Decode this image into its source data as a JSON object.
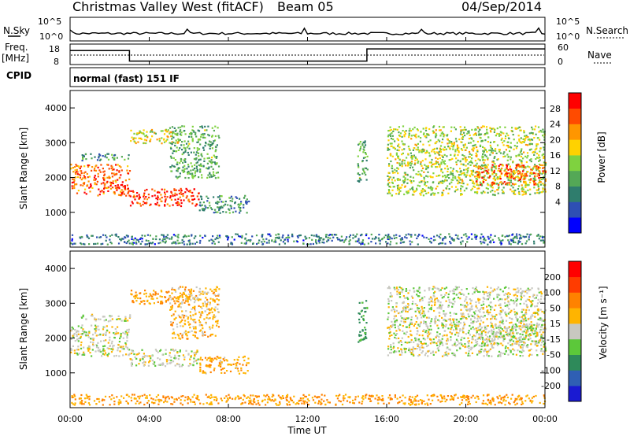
{
  "header": {
    "title": "Christmas Valley West (fitACF)",
    "beam": "Beam 05",
    "date": "04/Sep/2014"
  },
  "panels": {
    "nsky": {
      "left_label": "N.Sky",
      "right_label": "N.Search",
      "ticks_left": [
        "10^5",
        "10^0"
      ],
      "ticks_right": [
        "10^5",
        "10^0"
      ]
    },
    "freq": {
      "label": "Freq.",
      "unit": "[MHz]",
      "ticks_left": [
        "18",
        "8"
      ],
      "right_label": "Nave",
      "ticks_right": [
        "60",
        "0"
      ]
    },
    "cpid": {
      "label": "CPID",
      "value": "normal (fast) 151 IF"
    }
  },
  "power_panel": {
    "ylabel": "Slant Range [km]",
    "colorbar_label": "Power [dB]",
    "colorbar_ticks": [
      "28",
      "24",
      "20",
      "16",
      "12",
      "8",
      "4"
    ],
    "colors": [
      "#0000ff",
      "#2e4fb4",
      "#2f7d6d",
      "#54a856",
      "#7fd23f",
      "#ffd200",
      "#ff9600",
      "#ff4b00",
      "#ff0000"
    ]
  },
  "velocity_panel": {
    "ylabel": "Slant Range [km]",
    "colorbar_label": "Velocity [m s⁻¹]",
    "colorbar_ticks": [
      "200",
      "100",
      "50",
      "15",
      "-15",
      "-50",
      "-100",
      "-200"
    ],
    "colors": [
      "#1a1ad2",
      "#2f5fb4",
      "#2e8a5a",
      "#5cc83a",
      "#c8c8c0",
      "#ffb400",
      "#ff8200",
      "#ff3c00",
      "#ff0000"
    ]
  },
  "xaxis": {
    "label": "Time UT",
    "ticks": [
      "00:00",
      "04:00",
      "08:00",
      "12:00",
      "16:00",
      "20:00",
      "00:00"
    ]
  },
  "chart_data": {
    "type": "heatmap",
    "title": "Christmas Valley West (fitACF)",
    "xlabel": "Time UT",
    "ylabel": "Slant Range [km]",
    "xlim": [
      "00:00",
      "24:00"
    ],
    "ylim": [
      0,
      4500
    ],
    "yticks": [
      1000,
      2000,
      3000,
      4000
    ],
    "xticks": [
      "00:00",
      "04:00",
      "08:00",
      "12:00",
      "16:00",
      "20:00",
      "00:00"
    ],
    "frequency_steps_mhz": [
      {
        "from": "00:00",
        "to": "03:00",
        "value": 16
      },
      {
        "from": "03:00",
        "to": "15:00",
        "value": 10
      },
      {
        "from": "15:00",
        "to": "24:00",
        "value": 17
      }
    ],
    "power_colorbar_db": [
      4,
      8,
      12,
      16,
      20,
      24,
      28
    ],
    "velocity_colorbar_ms": [
      -200,
      -100,
      -50,
      -15,
      15,
      50,
      100,
      200
    ],
    "echo_regions": [
      {
        "start": "00:00",
        "end": "03:00",
        "range_km": [
          1500,
          2400
        ],
        "power_db": 24,
        "velocity_ms": 0
      },
      {
        "start": "00:30",
        "end": "03:00",
        "range_km": [
          2500,
          2700
        ],
        "power_db": 10,
        "velocity_ms": 0
      },
      {
        "start": "03:00",
        "end": "06:30",
        "range_km": [
          1200,
          1700
        ],
        "power_db": 26,
        "velocity_ms": 0
      },
      {
        "start": "03:00",
        "end": "05:30",
        "range_km": [
          3000,
          3400
        ],
        "power_db": 18,
        "velocity_ms": -50
      },
      {
        "start": "05:00",
        "end": "07:30",
        "range_km": [
          2000,
          3500
        ],
        "power_db": 12,
        "velocity_ms": -30
      },
      {
        "start": "06:30",
        "end": "09:00",
        "range_km": [
          1000,
          1500
        ],
        "power_db": 10,
        "velocity_ms": -40
      },
      {
        "start": "14:30",
        "end": "15:00",
        "range_km": [
          1900,
          3100
        ],
        "power_db": 12,
        "velocity_ms": 60
      },
      {
        "start": "16:00",
        "end": "24:00",
        "range_km": [
          1500,
          3500
        ],
        "power_db": 16,
        "velocity_ms": 0
      },
      {
        "start": "20:30",
        "end": "24:00",
        "range_km": [
          1800,
          2400
        ],
        "power_db": 24,
        "velocity_ms": 0
      },
      {
        "start": "00:00",
        "end": "24:00",
        "range_km": [
          100,
          400
        ],
        "power_db": 8,
        "velocity_ms": -50
      }
    ]
  }
}
